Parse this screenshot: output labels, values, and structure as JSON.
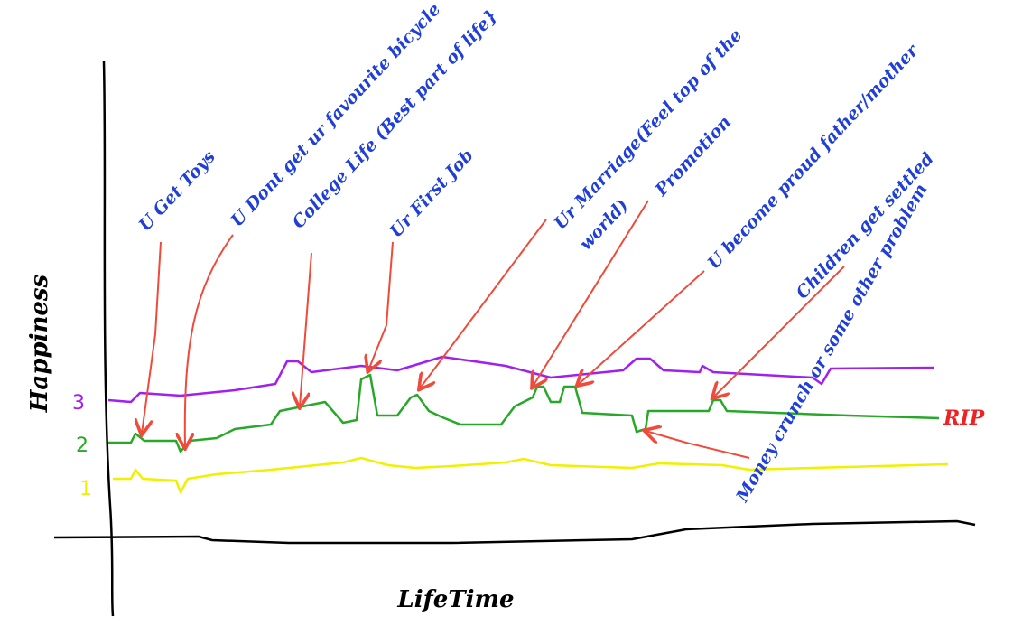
{
  "axes": {
    "y_label": "Happiness",
    "x_label": "LifeTime"
  },
  "line_labels": [
    "1",
    "2",
    "3"
  ],
  "end_label": "RIP",
  "annotations": [
    "U Get Toys",
    "U Dont get ur favourite bicycle",
    "College Life (Best part of life}",
    "Ur First Job",
    [
      "Ur Marriage(Feel top of the",
      "world)"
    ],
    "Promotion",
    "U become proud father/mother",
    "Children get settled",
    "Money crunch or some other problem"
  ]
}
